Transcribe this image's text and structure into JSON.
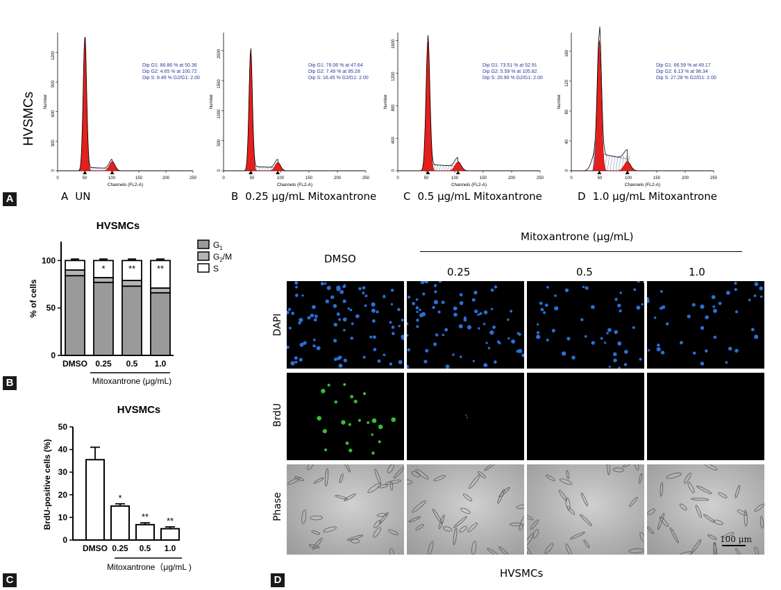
{
  "panel_a": {
    "tag": "A",
    "row_label": "HVSMCs",
    "x_axis_label": "Channels (FL2-A)",
    "y_axis_label": "Number",
    "x_ticks": [
      "0",
      "50",
      "100",
      "150",
      "200",
      "250"
    ],
    "histograms": [
      {
        "letter": "A",
        "condition": "UN",
        "y_ticks": [
          "0",
          "300",
          "600",
          "900",
          "1200"
        ],
        "y_max": 1400,
        "g1_peak": 1350,
        "stats": [
          "Dip G1: 86.86 % at 50.36",
          "Dip G2: 4.65 % at 100.72",
          "Dip S: 8.49 %   G2/G1: 2.00"
        ]
      },
      {
        "letter": "B",
        "condition": "0.25 μg/mL Mitoxantrone",
        "y_ticks": [
          "0",
          "500",
          "1000",
          "1500",
          "2000"
        ],
        "y_max": 2300,
        "g1_peak": 1980,
        "stats": [
          "Dip G1: 76.06 % at 47.64",
          "Dip G2: 7.49 % at 95.28",
          "Dip S: 16.45 %   G2/G1: 2.00"
        ]
      },
      {
        "letter": "C",
        "condition": "0.5 μg/mL Mitoxantrone",
        "y_ticks": [
          "0",
          "400",
          "800",
          "1200",
          "1600"
        ],
        "y_max": 1700,
        "g1_peak": 1590,
        "stats": [
          "Dip G1: 73.51 % at 52.91",
          "Dip G2: 5.59 % at 105.82",
          "Dip S: 20.90 %   G2/G1: 2.00"
        ]
      },
      {
        "letter": "D",
        "condition": "1.0 μg/mL Mitoxantrone",
        "y_ticks": [
          "0",
          "40",
          "80",
          "120",
          "160"
        ],
        "y_max": 185,
        "g1_peak": 175,
        "stats": [
          "Dip G1: 66.59 % at 49.17",
          "Dip G2: 6.13 % at 98.34",
          "Dip S: 27.28 %   G2/G1: 2.00"
        ]
      }
    ]
  },
  "chart_data": [
    {
      "type": "bar",
      "stacked": true,
      "title": "HVSMCs",
      "ylabel": "% of cells",
      "xlabel": "Mitoxantrone (μg/mL)",
      "categories": [
        "DMSO",
        "0.25",
        "0.5",
        "1.0"
      ],
      "ylim": [
        0,
        120
      ],
      "y_ticks": [
        "0",
        "50",
        "100"
      ],
      "series": [
        {
          "name": "G1",
          "values": [
            84,
            77,
            73,
            66
          ],
          "color": "#9a9a9a"
        },
        {
          "name": "G2/M",
          "values": [
            6,
            5,
            6,
            5
          ],
          "color": "#b4b4b4"
        },
        {
          "name": "S",
          "values": [
            10,
            18,
            21,
            29
          ],
          "color": "#ffffff"
        }
      ],
      "significance": [
        "",
        "*",
        "**",
        "**"
      ],
      "legend": [
        "G1",
        "G2/M",
        "S"
      ]
    },
    {
      "type": "bar",
      "title": "HVSMCs",
      "ylabel": "BrdU-positive cells (%)",
      "xlabel": "Mitoxantrone（μg/mL )",
      "categories": [
        "DMSO",
        "0.25",
        "0.5",
        "1.0"
      ],
      "values": [
        35.5,
        15,
        6.8,
        5
      ],
      "errors": [
        5.5,
        1,
        0.8,
        0.8
      ],
      "ylim": [
        0,
        50
      ],
      "y_ticks": [
        "0",
        "10",
        "20",
        "30",
        "40",
        "50"
      ],
      "significance": [
        "",
        "*",
        "**",
        "**"
      ]
    }
  ],
  "panel_b": {
    "tag": "B"
  },
  "panel_c": {
    "tag": "C"
  },
  "panel_d": {
    "tag": "D",
    "top_label": "Mitoxantrone (μg/mL)",
    "columns": [
      "DMSO",
      "0.25",
      "0.5",
      "1.0"
    ],
    "rows": [
      "DAPI",
      "BrdU",
      "Phase"
    ],
    "scale_bar": "100 μm",
    "caption": "HVSMCs",
    "colors": {
      "dapi": "#2a6fd6",
      "brdu": "#3dd23d",
      "phase_bg": "#bdbdbd"
    }
  }
}
